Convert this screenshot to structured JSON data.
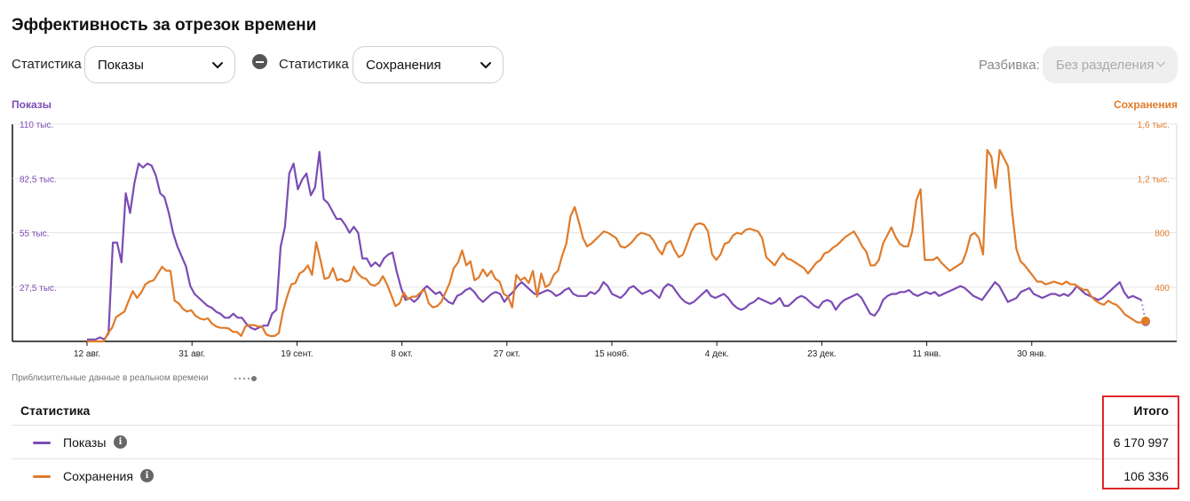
{
  "header": {
    "title": "Эффективность за отрезок времени"
  },
  "controls": {
    "stat1_label": "Статистика",
    "stat1_value": "Показы",
    "stat2_label": "Статистика",
    "stat2_value": "Сохранения",
    "breakdown_label": "Разбивка:",
    "breakdown_value": "Без разделения"
  },
  "legend": {
    "left": "Показы",
    "right": "Сохранения"
  },
  "colors": {
    "impressions": "#7b4bb4",
    "saves": "#e07b2a",
    "highlight": "#e0262c"
  },
  "chart_data": {
    "type": "line",
    "left_axis": {
      "ticks": [
        "27,5 тыс.",
        "55 тыс.",
        "82,5 тыс.",
        "110 тыс."
      ],
      "range": [
        0,
        110000
      ]
    },
    "right_axis": {
      "ticks": [
        "400",
        "800",
        "1,2 тыс.",
        "1,6 тыс."
      ],
      "range": [
        0,
        1600
      ]
    },
    "x_ticks": [
      "12 авг.",
      "31 авг.",
      "19 сент.",
      "8 окт.",
      "27 окт.",
      "15 нояб.",
      "4 дек.",
      "23 дек.",
      "11 янв.",
      "30 янв."
    ],
    "grid": true,
    "series": [
      {
        "name": "Показы",
        "axis": "left",
        "values": [
          1000,
          1000,
          1000,
          2000,
          1000,
          4000,
          50000,
          50000,
          40000,
          75000,
          65000,
          80000,
          90000,
          88000,
          90000,
          89000,
          84000,
          75000,
          73000,
          65000,
          55000,
          48000,
          43000,
          38000,
          28000,
          24000,
          22000,
          20000,
          18000,
          17000,
          15000,
          14000,
          12000,
          12000,
          14000,
          12000,
          12000,
          9000,
          7000,
          6000,
          7000,
          8000,
          8000,
          14000,
          16000,
          48000,
          58000,
          85000,
          90000,
          77000,
          82000,
          85000,
          74000,
          78000,
          96000,
          72000,
          70000,
          66000,
          62000,
          62000,
          59000,
          55000,
          58000,
          55000,
          42000,
          42000,
          38000,
          40000,
          38000,
          42000,
          44000,
          45000,
          35000,
          27000,
          21000,
          22000,
          20000,
          22000,
          26000,
          28000,
          26000,
          24000,
          25000,
          22000,
          20000,
          19000,
          23000,
          24000,
          26000,
          27000,
          25000,
          22000,
          20000,
          22000,
          24000,
          25000,
          24000,
          20000,
          23000,
          25000,
          28000,
          30000,
          28000,
          26000,
          24000,
          24000,
          25000,
          26000,
          25000,
          23000,
          24000,
          26000,
          27000,
          24000,
          23000,
          23000,
          23000,
          25000,
          24000,
          26000,
          30000,
          28000,
          24000,
          23000,
          22000,
          24000,
          27000,
          28000,
          26000,
          24000,
          25000,
          26000,
          24000,
          22000,
          27000,
          29000,
          28000,
          25000,
          22000,
          20000,
          19000,
          20000,
          22000,
          24000,
          26000,
          23000,
          22000,
          23000,
          24000,
          22000,
          19000,
          17000,
          16000,
          17000,
          19000,
          20000,
          22000,
          21000,
          20000,
          19000,
          20000,
          22000,
          18000,
          18000,
          20000,
          22000,
          23000,
          22000,
          20000,
          18000,
          17000,
          20000,
          21000,
          20000,
          16000,
          19000,
          21000,
          22000,
          23000,
          24000,
          22000,
          18000,
          14000,
          13000,
          16000,
          21000,
          23000,
          24000,
          24000,
          25000,
          25000,
          26000,
          24000,
          23000,
          24000,
          25000,
          24000,
          25000,
          23000,
          24000,
          25000,
          26000,
          27000,
          28000,
          27000,
          25000,
          23000,
          22000,
          21000,
          24000,
          27000,
          30000,
          28000,
          24000,
          20000,
          21000,
          22000,
          25000,
          26000,
          27000,
          24000,
          23000,
          22000,
          23000,
          24000,
          24000,
          23000,
          24000,
          23000,
          25000,
          28000,
          26000,
          24000,
          23000,
          22000,
          21000,
          22000,
          24000,
          26000,
          28000,
          30000,
          25000,
          22000,
          23000,
          22000,
          21000,
          10000
        ]
      },
      {
        "name": "Сохранения",
        "axis": "right",
        "values": [
          0,
          0,
          0,
          0,
          0,
          60,
          100,
          180,
          200,
          220,
          300,
          370,
          320,
          360,
          420,
          440,
          450,
          500,
          550,
          520,
          520,
          300,
          280,
          240,
          220,
          230,
          190,
          170,
          160,
          170,
          130,
          110,
          100,
          100,
          95,
          70,
          70,
          40,
          110,
          120,
          120,
          110,
          110,
          50,
          40,
          40,
          60,
          220,
          330,
          420,
          430,
          500,
          520,
          560,
          490,
          730,
          600,
          460,
          470,
          540,
          450,
          460,
          440,
          450,
          550,
          500,
          470,
          460,
          420,
          410,
          430,
          480,
          420,
          340,
          260,
          280,
          360,
          310,
          330,
          330,
          360,
          380,
          280,
          250,
          260,
          290,
          360,
          430,
          540,
          580,
          670,
          560,
          590,
          450,
          470,
          530,
          480,
          520,
          460,
          440,
          350,
          330,
          250,
          490,
          450,
          470,
          430,
          520,
          330,
          500,
          400,
          420,
          490,
          520,
          630,
          720,
          920,
          990,
          880,
          760,
          700,
          720,
          750,
          780,
          810,
          800,
          780,
          760,
          700,
          690,
          710,
          740,
          780,
          800,
          790,
          780,
          740,
          680,
          640,
          720,
          740,
          670,
          620,
          640,
          720,
          810,
          860,
          870,
          860,
          810,
          640,
          600,
          640,
          720,
          730,
          780,
          800,
          790,
          820,
          830,
          820,
          810,
          760,
          620,
          590,
          560,
          610,
          650,
          610,
          600,
          580,
          560,
          540,
          500,
          540,
          580,
          600,
          650,
          660,
          690,
          710,
          740,
          770,
          790,
          810,
          760,
          700,
          660,
          560,
          560,
          600,
          720,
          780,
          840,
          770,
          720,
          700,
          700,
          810,
          1040,
          1120,
          600,
          600,
          600,
          620,
          580,
          550,
          520,
          540,
          560,
          580,
          660,
          780,
          800,
          760,
          640,
          1410,
          1360,
          1130,
          1410,
          1350,
          1290,
          950,
          680,
          590,
          560,
          520,
          480,
          440,
          440,
          420,
          430,
          440,
          430,
          420,
          440,
          420,
          420,
          400,
          380,
          380,
          330,
          300,
          280,
          270,
          300,
          280,
          270,
          240,
          200,
          180,
          160,
          140,
          140,
          150
        ]
      }
    ]
  },
  "realtime_note": "Приблизительные данные в реальном времени",
  "table": {
    "header_stat": "Статистика",
    "header_total": "Итого",
    "rows": [
      {
        "label": "Показы",
        "value": "6 170 997"
      },
      {
        "label": "Сохранения",
        "value": "106 336"
      }
    ]
  }
}
